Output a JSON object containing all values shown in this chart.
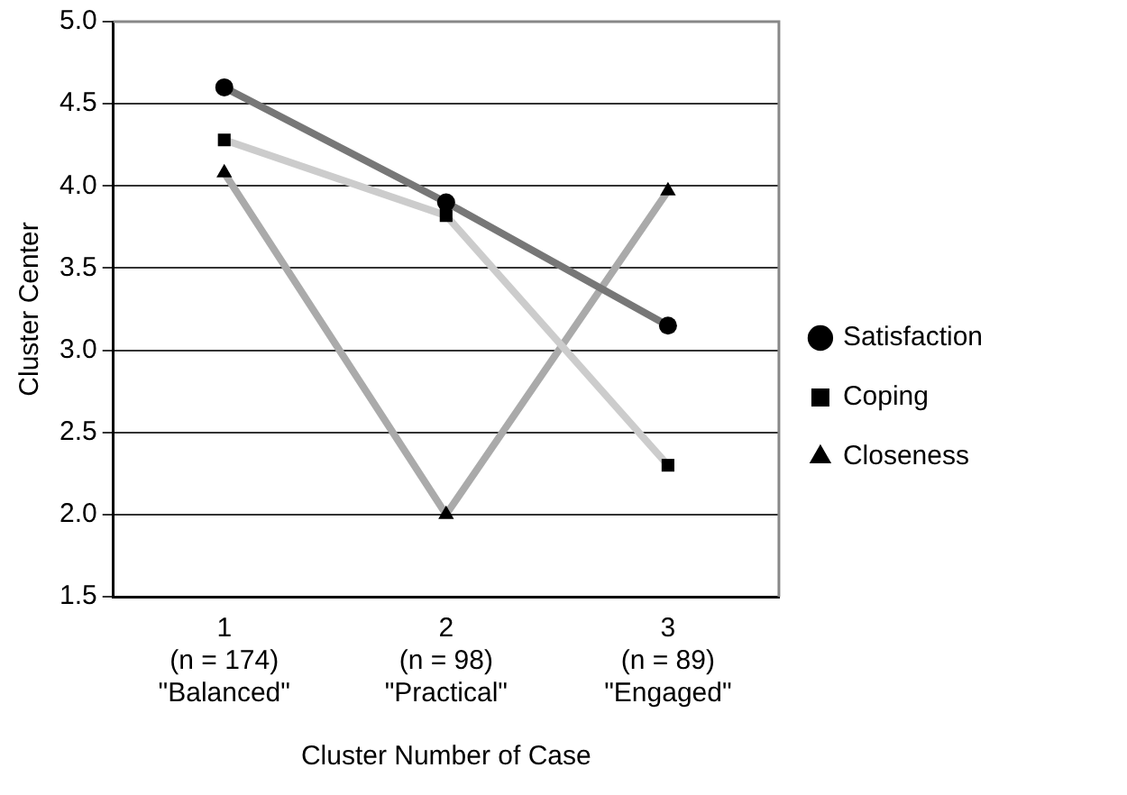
{
  "chart_data": {
    "type": "line",
    "xlabel": "Cluster Number of Case",
    "ylabel": "Cluster Center",
    "categories": [
      "1\n(n = 174)\n\"Balanced\"",
      "2\n(n = 98)\n\"Practical\"",
      "3\n(n = 89)\n\"Engaged\""
    ],
    "series": [
      {
        "name": "Satisfaction",
        "color": "#777777",
        "marker": "circle",
        "values": [
          4.6,
          3.9,
          3.15
        ]
      },
      {
        "name": "Coping",
        "color": "#cccccc",
        "marker": "square",
        "values": [
          4.28,
          3.82,
          2.3
        ]
      },
      {
        "name": "Closeness",
        "color": "#aaaaaa",
        "marker": "triangle",
        "values": [
          4.08,
          2.0,
          3.97
        ]
      }
    ],
    "ylim": [
      1.5,
      5.0
    ],
    "yticks": [
      1.5,
      {
        "value": 2,
        "label": "2.0"
      },
      2.5,
      {
        "value": 3,
        "label": "3.0"
      },
      3.5,
      {
        "value": 4,
        "label": "4.0"
      },
      4.5,
      {
        "value": 5,
        "label": "5.0"
      }
    ],
    "grid": "y",
    "legend": "right"
  }
}
